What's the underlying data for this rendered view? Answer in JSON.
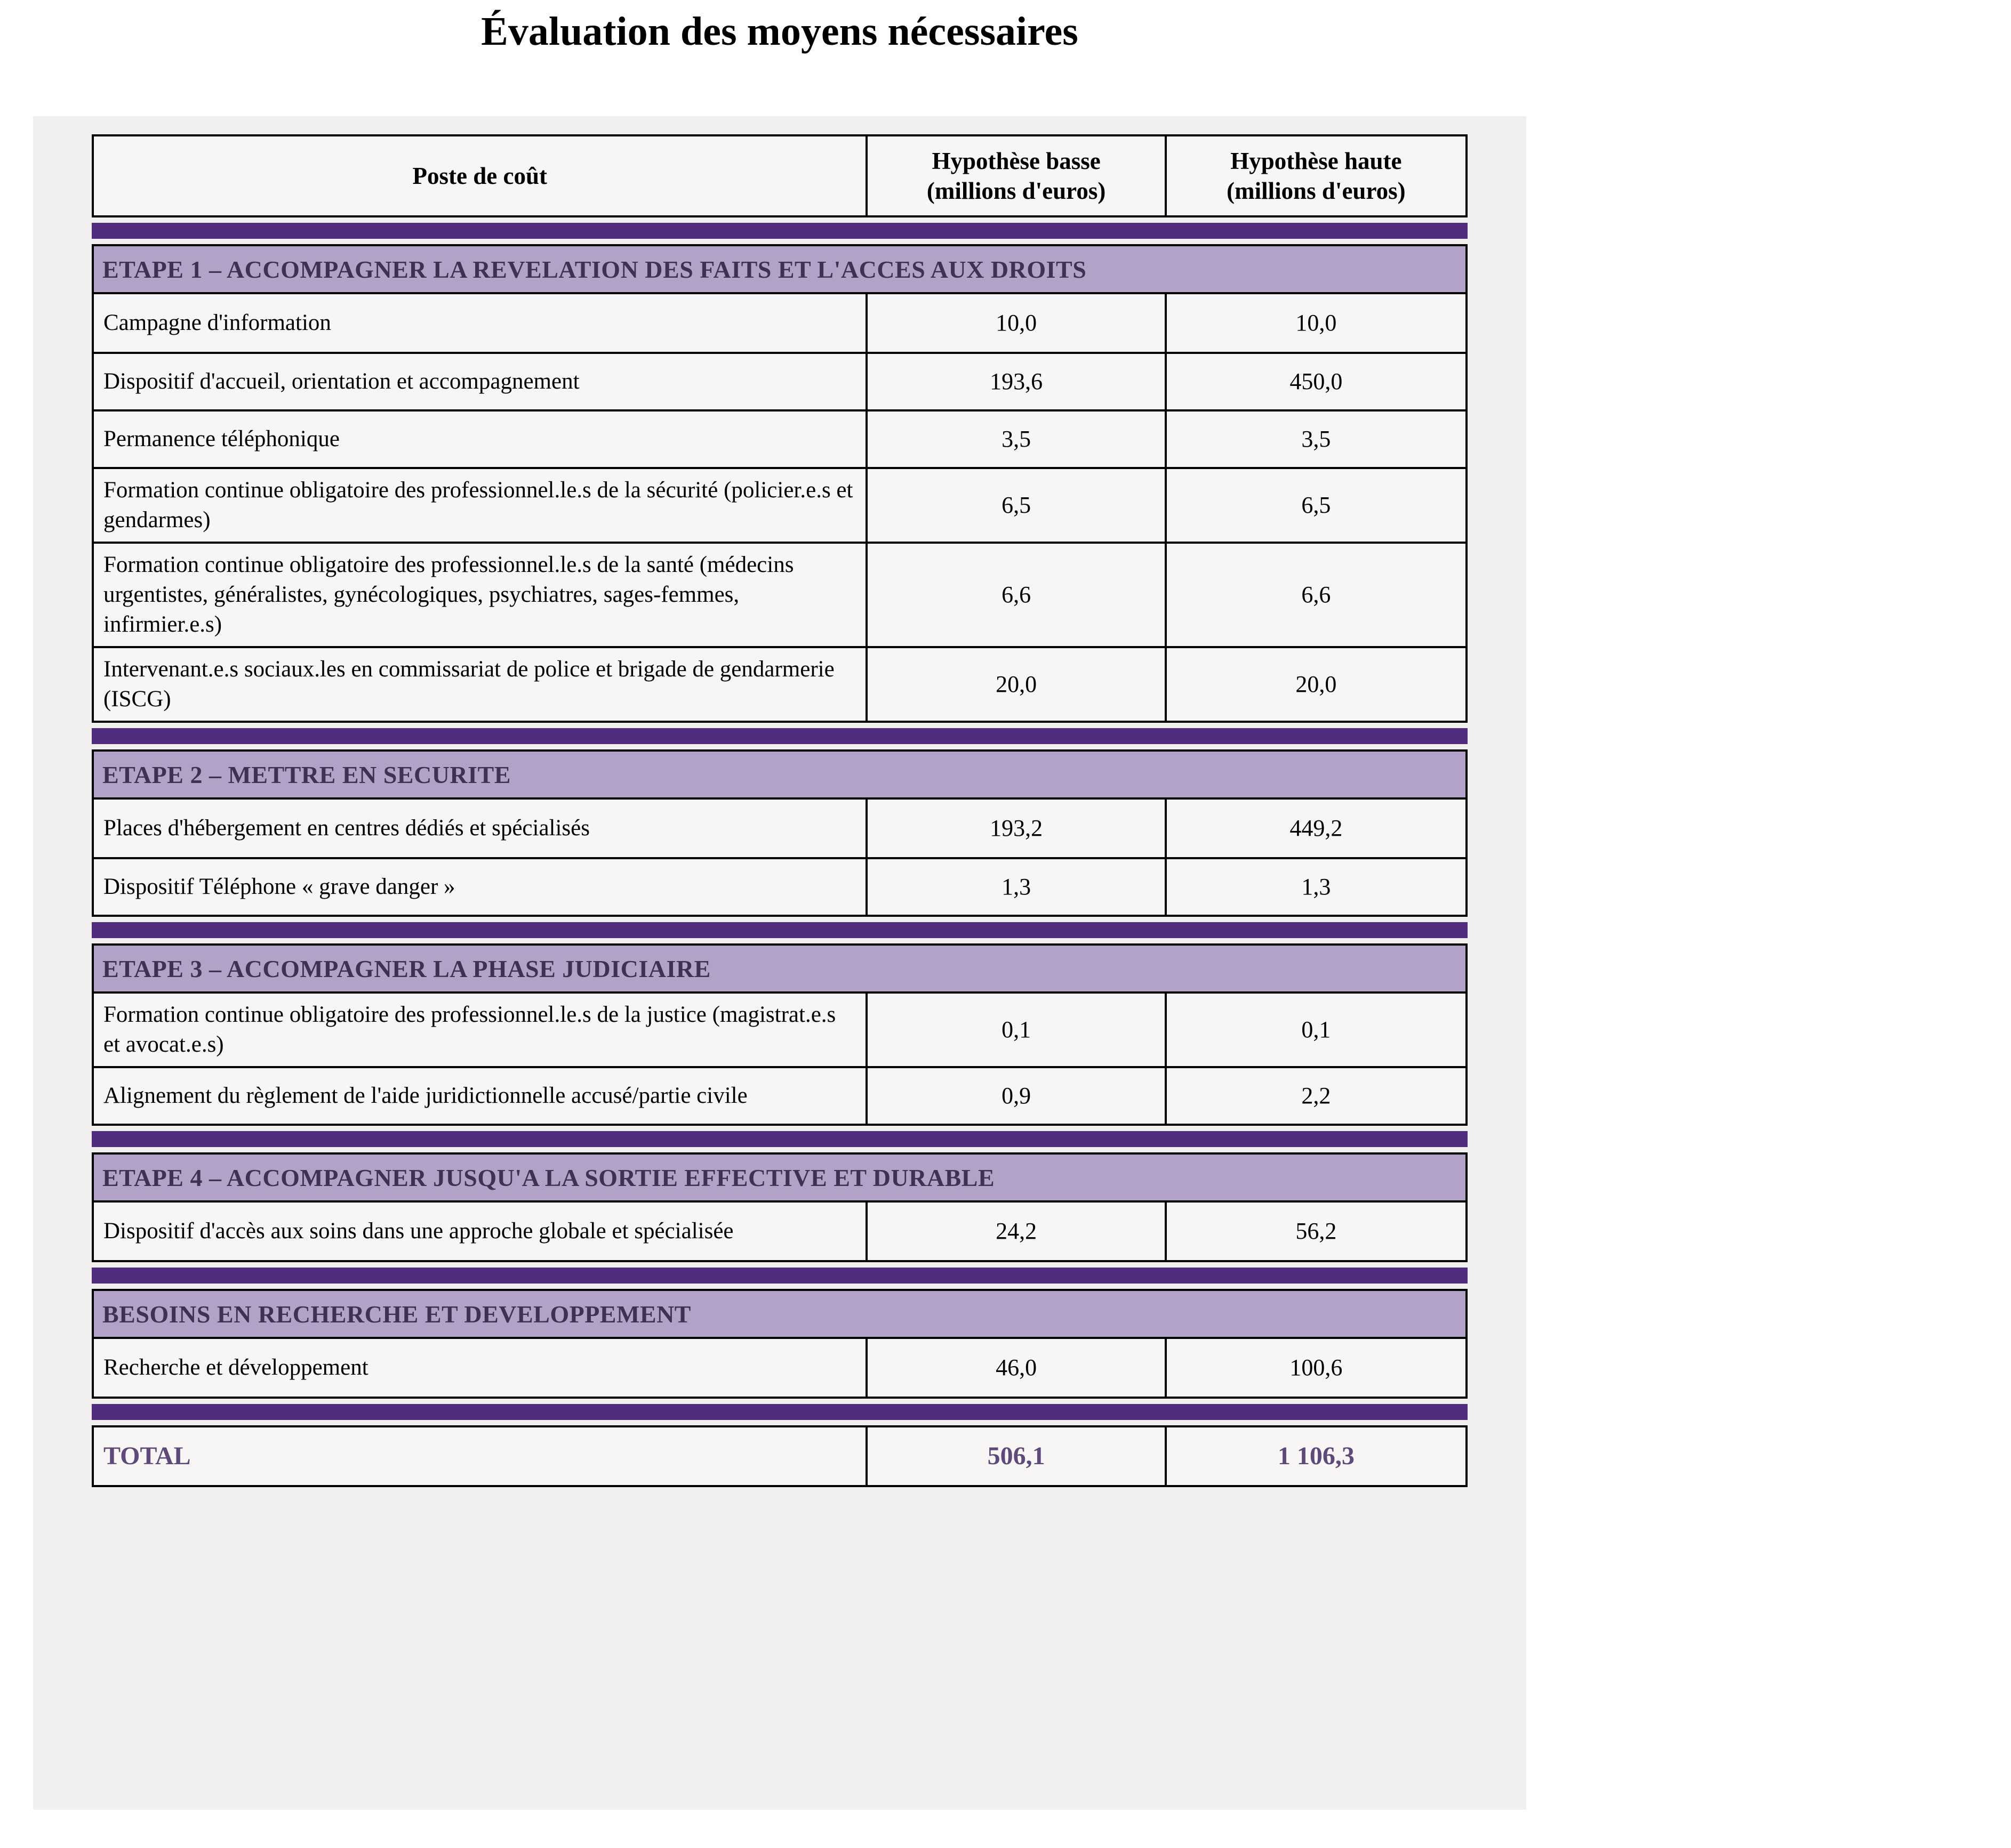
{
  "page": {
    "title": "Évaluation des moyens nécessaires"
  },
  "table": {
    "header": {
      "label": "Poste de coût",
      "low": "Hypothèse basse\n(millions d'euros)",
      "high": "Hypothèse haute\n(millions d'euros)"
    },
    "sections": [
      {
        "title": "ETAPE 1 – ACCOMPAGNER LA REVELATION DES FAITS ET L'ACCES AUX DROITS",
        "rows": [
          {
            "label": "Campagne d'information",
            "low": "10,0",
            "high": "10,0"
          },
          {
            "label": "Dispositif d'accueil, orientation et accompagnement",
            "low": "193,6",
            "high": "450,0"
          },
          {
            "label": "Permanence téléphonique",
            "low": "3,5",
            "high": "3,5"
          },
          {
            "label": "Formation continue obligatoire des professionnel.le.s de la sécurité (policier.e.s et gendarmes)",
            "low": "6,5",
            "high": "6,5"
          },
          {
            "label": "Formation continue obligatoire des professionnel.le.s de la santé (médecins urgentistes, généralistes, gynécologiques, psychiatres, sages-femmes, infirmier.e.s)",
            "low": "6,6",
            "high": "6,6"
          },
          {
            "label": "Intervenant.e.s sociaux.les en commissariat de police et brigade de gendarmerie (ISCG)",
            "low": "20,0",
            "high": "20,0"
          }
        ]
      },
      {
        "title": "ETAPE 2 – METTRE EN SECURITE",
        "rows": [
          {
            "label": "Places d'hébergement en centres dédiés et spécialisés",
            "low": "193,2",
            "high": "449,2"
          },
          {
            "label": "Dispositif Téléphone « grave danger »",
            "low": "1,3",
            "high": "1,3"
          }
        ]
      },
      {
        "title": "ETAPE 3 – ACCOMPAGNER LA PHASE JUDICIAIRE",
        "rows": [
          {
            "label": "Formation continue obligatoire des professionnel.le.s de la justice (magistrat.e.s et avocat.e.s)",
            "low": "0,1",
            "high": "0,1"
          },
          {
            "label": "Alignement du règlement de l'aide juridictionnelle accusé/partie civile",
            "low": "0,9",
            "high": "2,2"
          }
        ]
      },
      {
        "title": "ETAPE 4 – ACCOMPAGNER JUSQU'A LA SORTIE EFFECTIVE ET DURABLE",
        "rows": [
          {
            "label": "Dispositif d'accès aux soins dans une approche globale et spécialisée",
            "low": "24,2",
            "high": "56,2"
          }
        ]
      },
      {
        "title": "BESOINS EN RECHERCHE ET DEVELOPPEMENT",
        "rows": [
          {
            "label": "Recherche et développement",
            "low": "46,0",
            "high": "100,6"
          }
        ]
      }
    ],
    "total": {
      "label": "TOTAL",
      "low": "506,1",
      "high": "1 106,3"
    },
    "colors": {
      "band_bg": "#b3a2c7",
      "band_text": "#3f3151",
      "bar": "#4f2d7c",
      "total_text": "#5f497a"
    }
  }
}
